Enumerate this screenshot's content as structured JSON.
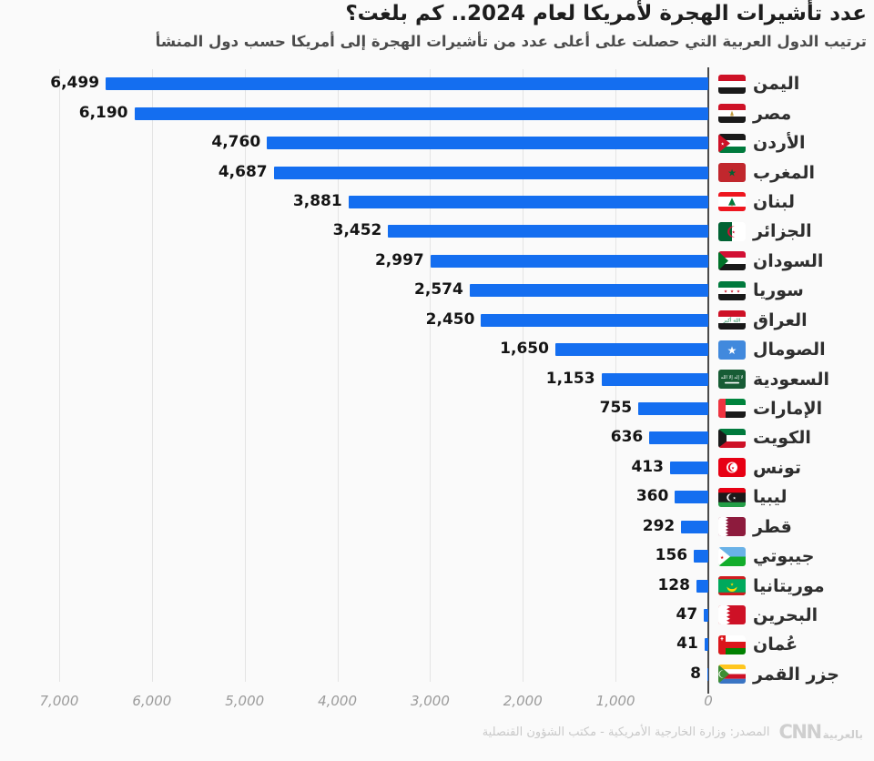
{
  "title": "عدد تأشيرات الهجرة لأمريكا لعام 2024.. كم بلغت؟",
  "subtitle": "ترتيب الدول العربية التي حصلت على أعلى عدد من تأشيرات الهجرة إلى أمريكا حسب دول المنشأ",
  "source": "المصدر: وزارة الخارجية الأمريكية - مكتب الشؤون القنصلية",
  "logo": {
    "cnn": "CNN",
    "arabic": "بالعربية"
  },
  "colors": {
    "bar": "#146ef0",
    "axis": "#4a4a4a",
    "grid": "#e4e4e4",
    "value_text": "#141414",
    "tick_text": "#9b9b9b"
  },
  "chart_data": {
    "type": "bar",
    "orientation": "horizontal",
    "direction": "rtl",
    "title": "عدد تأشيرات الهجرة لأمريكا لعام 2024.. كم بلغت؟",
    "xlabel": "",
    "ylabel": "",
    "xlim": [
      0,
      7000
    ],
    "grid": true,
    "x_ticks": [
      "7,000",
      "6,000",
      "5,000",
      "4,000",
      "3,000",
      "2,000",
      "1,000",
      "0"
    ],
    "categories": [
      "اليمن",
      "مصر",
      "الأردن",
      "المغرب",
      "لبنان",
      "الجزائر",
      "السودان",
      "سوريا",
      "العراق",
      "الصومال",
      "السعودية",
      "الإمارات",
      "الكويت",
      "تونس",
      "ليبيا",
      "قطر",
      "جيبوتي",
      "موريتانيا",
      "البحرين",
      "عُمان",
      "جزر القمر"
    ],
    "values": [
      6499,
      6190,
      4760,
      4687,
      3881,
      3452,
      2997,
      2574,
      2450,
      1650,
      1153,
      755,
      636,
      413,
      360,
      292,
      156,
      128,
      47,
      41,
      8
    ],
    "value_labels": [
      "6,499",
      "6,190",
      "4,760",
      "4,687",
      "3,881",
      "3,452",
      "2,997",
      "2,574",
      "2,450",
      "1,650",
      "1,153",
      "755",
      "636",
      "413",
      "360",
      "292",
      "156",
      "128",
      "47",
      "41",
      "8"
    ],
    "flags": [
      "yemen",
      "egypt",
      "jordan",
      "morocco",
      "lebanon",
      "algeria",
      "sudan",
      "syria",
      "iraq",
      "somalia",
      "saudi-arabia",
      "uae",
      "kuwait",
      "tunisia",
      "libya",
      "qatar",
      "djibouti",
      "mauritania",
      "bahrain",
      "oman",
      "comoros"
    ]
  }
}
